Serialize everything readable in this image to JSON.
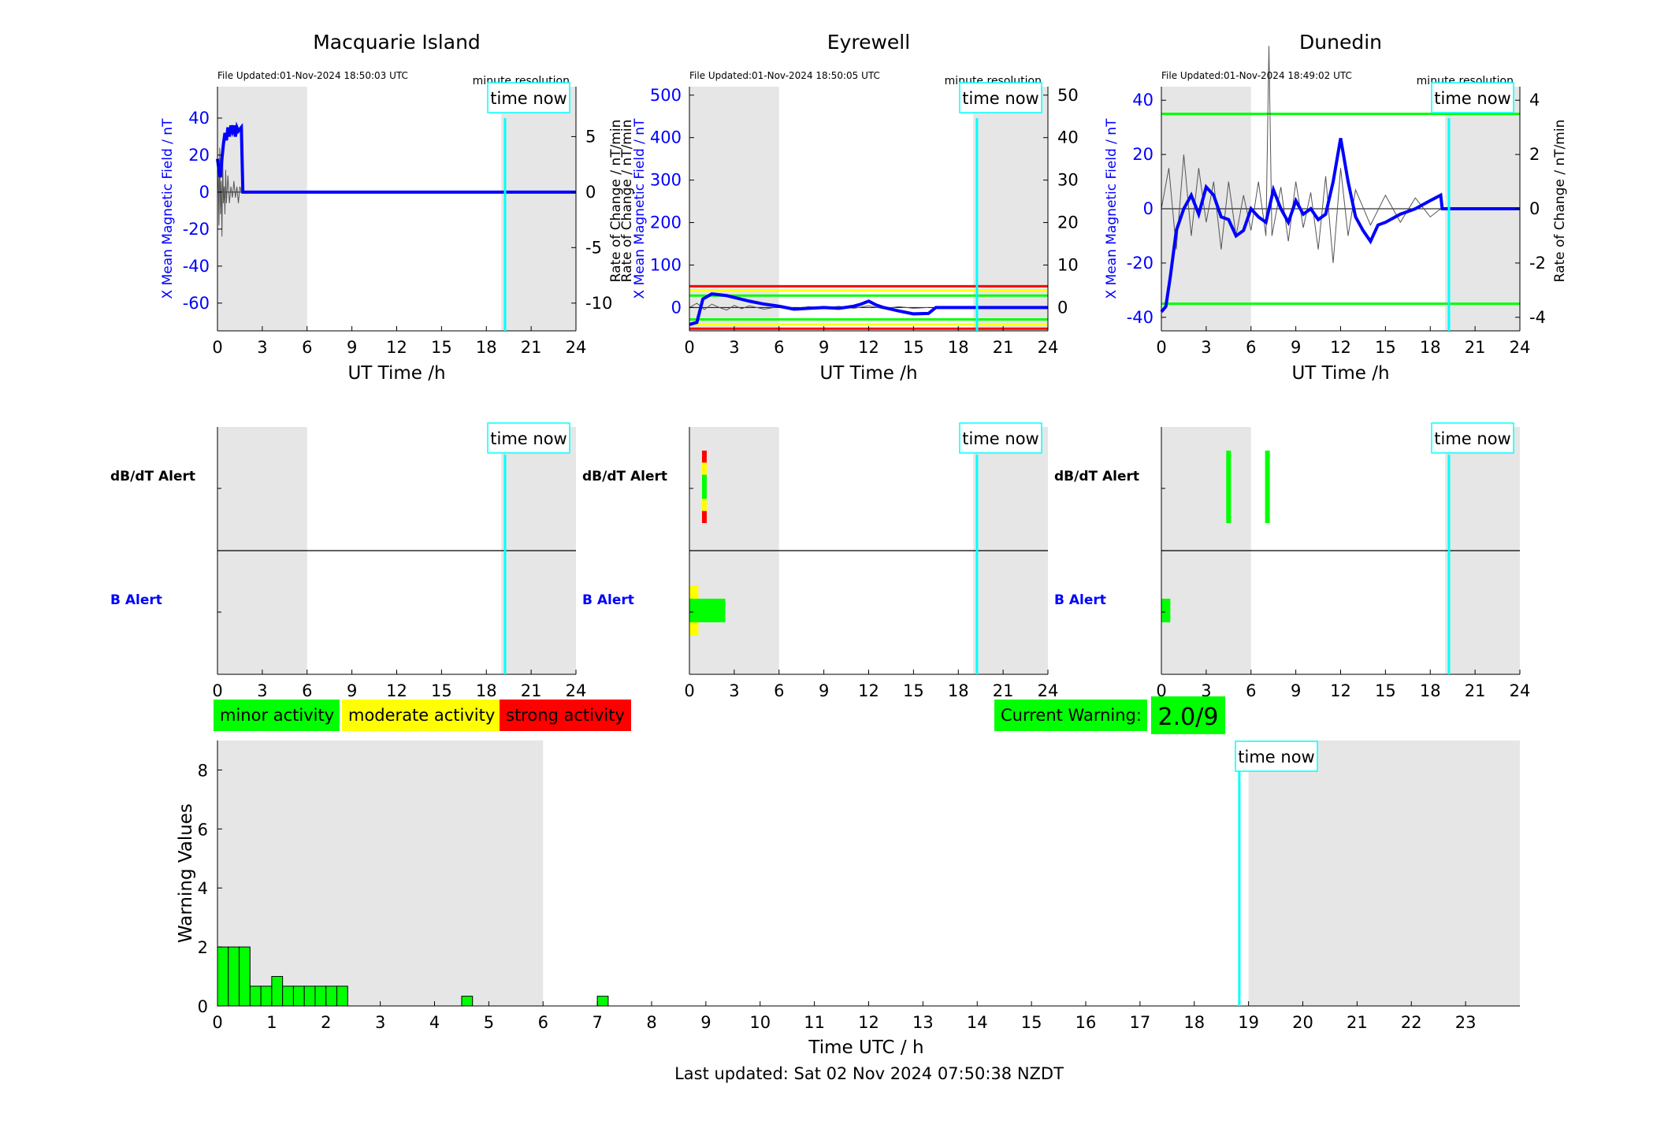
{
  "labels": {
    "ut_time": "UT Time /h",
    "time_now": "time now",
    "minute_resolution": "minute resolution",
    "x_mean": "X Mean Magnetic Field / nT",
    "rate": "Rate of Change / nT/min",
    "dbdt_alert": "dB/dT Alert",
    "b_alert": "B Alert",
    "warning_values": "Warning Values",
    "time_utc": "Time UTC / h",
    "current_warning": "Current Warning:",
    "last_updated": "Last updated: Sat 02 Nov 2024 07:50:38 NZDT"
  },
  "legend": {
    "minor": "minor activity",
    "moderate": "moderate activity",
    "strong": "strong activity"
  },
  "current_warning_value": "2.0/9",
  "colors": {
    "minor": "#00ff00",
    "moderate": "#ffff00",
    "strong": "#ff0000",
    "time_now": "#00ffff",
    "field": "#0000ff",
    "night": "#e6e6e6"
  },
  "time_now_hour": 18.83,
  "chart_data": [
    {
      "type": "line",
      "title": "Macquarie Island",
      "file_updated": "File Updated:01-Nov-2024 18:50:03 UTC",
      "x_ticks": [
        0,
        3,
        6,
        9,
        12,
        15,
        18,
        21,
        24
      ],
      "xlim": [
        0,
        24
      ],
      "left_ylim": [
        -75,
        57
      ],
      "left_ticks": [
        -60,
        -40,
        -20,
        0,
        20,
        40
      ],
      "right_ylim": [
        -12.5,
        9.5
      ],
      "right_ticks": [
        -10,
        -5,
        0,
        5
      ],
      "shade": [
        [
          0,
          6
        ],
        [
          19,
          24
        ]
      ],
      "thresholds": [],
      "field": [
        [
          0,
          18
        ],
        [
          0.1,
          12
        ],
        [
          0.2,
          8
        ],
        [
          0.3,
          18
        ],
        [
          0.4,
          26
        ],
        [
          0.5,
          32
        ],
        [
          0.6,
          28
        ],
        [
          0.7,
          35
        ],
        [
          0.8,
          30
        ],
        [
          0.9,
          36
        ],
        [
          1.0,
          33
        ],
        [
          1.1,
          36
        ],
        [
          1.2,
          30
        ],
        [
          1.3,
          35
        ],
        [
          1.4,
          33
        ],
        [
          1.5,
          34
        ],
        [
          1.6,
          35
        ],
        [
          1.7,
          0
        ],
        [
          24,
          0
        ]
      ],
      "rate": [
        [
          0,
          0
        ],
        [
          0.05,
          2
        ],
        [
          0.1,
          -3
        ],
        [
          0.15,
          4
        ],
        [
          0.2,
          -2
        ],
        [
          0.25,
          1
        ],
        [
          0.3,
          -4
        ],
        [
          0.35,
          3
        ],
        [
          0.4,
          -1
        ],
        [
          0.45,
          0.5
        ],
        [
          0.5,
          -2
        ],
        [
          0.55,
          2
        ],
        [
          0.6,
          -1
        ],
        [
          0.7,
          1.5
        ],
        [
          0.8,
          -1
        ],
        [
          0.9,
          0.5
        ],
        [
          1.0,
          -0.5
        ],
        [
          1.1,
          1
        ],
        [
          1.2,
          -0.5
        ],
        [
          1.3,
          0.5
        ],
        [
          1.4,
          -1
        ],
        [
          1.5,
          0.5
        ],
        [
          1.6,
          0
        ]
      ]
    },
    {
      "type": "line",
      "title": "Eyrewell",
      "file_updated": "File Updated:01-Nov-2024 18:50:05 UTC",
      "x_ticks": [
        0,
        3,
        6,
        9,
        12,
        15,
        18,
        21,
        24
      ],
      "xlim": [
        0,
        24
      ],
      "left_ylim": [
        -55,
        520
      ],
      "left_ticks": [
        0,
        100,
        200,
        300,
        400,
        500
      ],
      "right_ylim": [
        -5.5,
        52
      ],
      "right_ticks": [
        0,
        10,
        20,
        30,
        40,
        50
      ],
      "shade": [
        [
          0,
          6
        ],
        [
          19,
          24
        ]
      ],
      "thresholds": [
        {
          "value": 50,
          "color": "#ff0000"
        },
        {
          "value": 40,
          "color": "#ffff00"
        },
        {
          "value": 28,
          "color": "#00ff00"
        },
        {
          "value": -28,
          "color": "#00ff00"
        },
        {
          "value": -40,
          "color": "#ffff00"
        },
        {
          "value": -50,
          "color": "#ff0000"
        }
      ],
      "field": [
        [
          0,
          -40
        ],
        [
          0.5,
          -35
        ],
        [
          0.9,
          20
        ],
        [
          1.5,
          32
        ],
        [
          2.5,
          28
        ],
        [
          4,
          15
        ],
        [
          5,
          8
        ],
        [
          6,
          3
        ],
        [
          7,
          -4
        ],
        [
          8,
          -2
        ],
        [
          9,
          0
        ],
        [
          10,
          -2
        ],
        [
          11,
          3
        ],
        [
          11.5,
          8
        ],
        [
          12,
          15
        ],
        [
          12.5,
          6
        ],
        [
          13,
          0
        ],
        [
          14,
          -8
        ],
        [
          15,
          -15
        ],
        [
          16,
          -14
        ],
        [
          16.5,
          0
        ],
        [
          24,
          0
        ]
      ],
      "rate": [
        [
          0,
          0
        ],
        [
          0.5,
          1
        ],
        [
          1,
          -0.5
        ],
        [
          1.5,
          0.8
        ],
        [
          2,
          0
        ],
        [
          2.5,
          -0.6
        ],
        [
          3,
          0.5
        ],
        [
          3.5,
          -0.3
        ],
        [
          4,
          0.4
        ],
        [
          5,
          -0.4
        ],
        [
          6,
          0.2
        ],
        [
          7,
          -0.3
        ],
        [
          8,
          0.2
        ],
        [
          9,
          -0.2
        ],
        [
          10,
          0.3
        ],
        [
          11,
          -0.2
        ],
        [
          12,
          0.4
        ],
        [
          13,
          -0.3
        ],
        [
          14,
          0.2
        ],
        [
          15,
          -0.2
        ],
        [
          16,
          0
        ]
      ]
    },
    {
      "type": "line",
      "title": "Dunedin",
      "file_updated": "File Updated:01-Nov-2024 18:49:02 UTC",
      "x_ticks": [
        0,
        3,
        6,
        9,
        12,
        15,
        18,
        21,
        24
      ],
      "xlim": [
        0,
        24
      ],
      "left_ylim": [
        -45,
        45
      ],
      "left_ticks": [
        -40,
        -20,
        0,
        20,
        40
      ],
      "right_ylim": [
        -4.5,
        4.5
      ],
      "right_ticks": [
        -4,
        -2,
        0,
        2,
        4
      ],
      "shade": [
        [
          0,
          6
        ],
        [
          19,
          24
        ]
      ],
      "thresholds": [
        {
          "value": 35,
          "color": "#00ff00"
        },
        {
          "value": -35,
          "color": "#00ff00"
        }
      ],
      "field": [
        [
          0,
          -38
        ],
        [
          0.3,
          -36
        ],
        [
          0.6,
          -25
        ],
        [
          1,
          -8
        ],
        [
          1.5,
          0
        ],
        [
          2,
          5
        ],
        [
          2.5,
          -2
        ],
        [
          3,
          8
        ],
        [
          3.5,
          5
        ],
        [
          4,
          -3
        ],
        [
          4.5,
          -4
        ],
        [
          5,
          -10
        ],
        [
          5.5,
          -8
        ],
        [
          6,
          0
        ],
        [
          6.5,
          -3
        ],
        [
          7,
          -5
        ],
        [
          7.5,
          7
        ],
        [
          8,
          0
        ],
        [
          8.5,
          -5
        ],
        [
          9,
          3
        ],
        [
          9.5,
          -2
        ],
        [
          10,
          0
        ],
        [
          10.5,
          -4
        ],
        [
          11,
          -2
        ],
        [
          11.5,
          10
        ],
        [
          12,
          26
        ],
        [
          12.5,
          10
        ],
        [
          13,
          -3
        ],
        [
          13.5,
          -8
        ],
        [
          14,
          -12
        ],
        [
          14.5,
          -6
        ],
        [
          15,
          -5
        ],
        [
          16,
          -2
        ],
        [
          17,
          0
        ],
        [
          18,
          3
        ],
        [
          18.7,
          5
        ],
        [
          18.8,
          0
        ],
        [
          24,
          0
        ]
      ],
      "rate": [
        [
          0,
          0
        ],
        [
          0.5,
          1.5
        ],
        [
          1,
          -1.5
        ],
        [
          1.5,
          2
        ],
        [
          2,
          -1
        ],
        [
          2.5,
          1.5
        ],
        [
          3,
          -0.5
        ],
        [
          3.5,
          1
        ],
        [
          4,
          -1.5
        ],
        [
          4.5,
          1
        ],
        [
          5,
          -1
        ],
        [
          5.5,
          0.5
        ],
        [
          6,
          -0.8
        ],
        [
          6.5,
          1
        ],
        [
          7,
          -1
        ],
        [
          7.2,
          6
        ],
        [
          7.4,
          -1
        ],
        [
          8,
          0.8
        ],
        [
          8.5,
          -1.2
        ],
        [
          9,
          1
        ],
        [
          9.5,
          -0.7
        ],
        [
          10,
          0.6
        ],
        [
          10.5,
          -1.5
        ],
        [
          11,
          1.2
        ],
        [
          11.5,
          -2
        ],
        [
          12,
          1.5
        ],
        [
          12.5,
          -1
        ],
        [
          13,
          0.7
        ],
        [
          14,
          -0.6
        ],
        [
          15,
          0.5
        ],
        [
          16,
          -0.5
        ],
        [
          17,
          0.4
        ],
        [
          18,
          -0.3
        ],
        [
          18.7,
          0
        ]
      ]
    },
    {
      "type": "bar",
      "title": "",
      "xlabel": "Time UTC / h",
      "ylabel": "Warning Values",
      "ylim": [
        0,
        9
      ],
      "y_ticks": [
        0,
        2,
        4,
        6,
        8
      ],
      "x_ticks": [
        0,
        1,
        2,
        3,
        4,
        5,
        6,
        7,
        8,
        9,
        10,
        11,
        12,
        13,
        14,
        15,
        16,
        17,
        18,
        19,
        20,
        21,
        22,
        23
      ],
      "xlim": [
        0,
        24
      ],
      "bar_width_h": 0.2,
      "bars": [
        {
          "x": 0.0,
          "value": 2
        },
        {
          "x": 0.2,
          "value": 2
        },
        {
          "x": 0.4,
          "value": 2
        },
        {
          "x": 0.6,
          "value": 0.67
        },
        {
          "x": 0.8,
          "value": 0.67
        },
        {
          "x": 1.0,
          "value": 1
        },
        {
          "x": 1.2,
          "value": 0.67
        },
        {
          "x": 1.4,
          "value": 0.67
        },
        {
          "x": 1.6,
          "value": 0.67
        },
        {
          "x": 1.8,
          "value": 0.67
        },
        {
          "x": 2.0,
          "value": 0.67
        },
        {
          "x": 2.2,
          "value": 0.67
        },
        {
          "x": 4.5,
          "value": 0.33
        },
        {
          "x": 7.0,
          "value": 0.33
        }
      ]
    }
  ],
  "alerts": [
    {
      "dbdt": [],
      "b": []
    },
    {
      "dbdt": [
        {
          "x": 1.0,
          "levels": [
            "#ff0000",
            "#ffff00",
            "#00ff00",
            "#00ff00",
            "#ffff00",
            "#ff0000"
          ]
        }
      ],
      "b": [
        {
          "x0": 0,
          "x1": 0.6,
          "color": "#ffff00",
          "tall": true
        },
        {
          "x0": 0,
          "x1": 2.4,
          "color": "#00ff00",
          "tall": false
        }
      ]
    },
    {
      "dbdt": [
        {
          "x": 4.5,
          "levels": [
            "#00ff00"
          ]
        },
        {
          "x": 7.1,
          "levels": [
            "#00ff00"
          ]
        }
      ],
      "b": [
        {
          "x0": 0,
          "x1": 0.6,
          "color": "#00ff00",
          "tall": false
        }
      ]
    }
  ]
}
